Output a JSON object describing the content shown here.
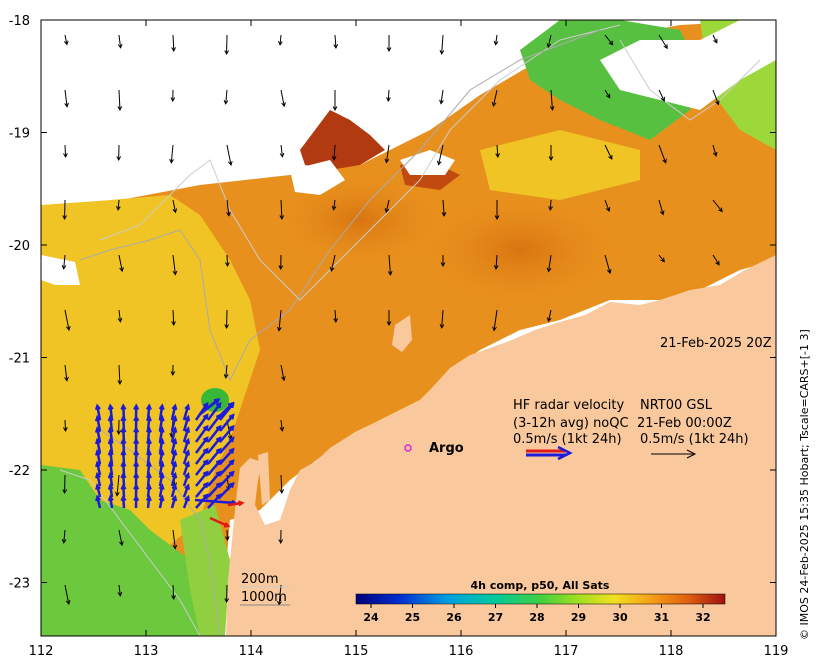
{
  "map": {
    "x_ticks": [
      "112",
      "113",
      "114",
      "115",
      "116",
      "117",
      "118",
      "119"
    ],
    "y_ticks": [
      "-18",
      "-19",
      "-20",
      "-21",
      "-22",
      "-23"
    ],
    "date_label": "21-Feb-2025 20Z",
    "argo_label": "Argo",
    "legend": {
      "line1_left": "HF radar velocity",
      "line1_right": "NRT00 GSL",
      "line2_left": "(3-12h avg) noQC",
      "line2_right": "21-Feb 00:00Z",
      "line3_left": "0.5m/s (1kt 24h)",
      "line3_right": "0.5m/s (1kt 24h)"
    },
    "depth_labels": [
      "200m",
      "1000m"
    ],
    "colorbar": {
      "title": "4h comp, p50, All Sats",
      "ticks": [
        "24",
        "25",
        "26",
        "27",
        "28",
        "29",
        "30",
        "31",
        "32"
      ]
    },
    "credit": "© IMOS 24-Feb-2025 15:35 Hobart; Tscale=CARS+[-1 3]"
  },
  "colors": {
    "land": "#f9c89c",
    "sst_warm": "#e08a18",
    "sst_mid": "#f0c020",
    "sst_cool": "#7cd040",
    "radar_vector": "#1c1cd8",
    "radar_highlight": "#e01818",
    "argo": "#e020e0"
  }
}
